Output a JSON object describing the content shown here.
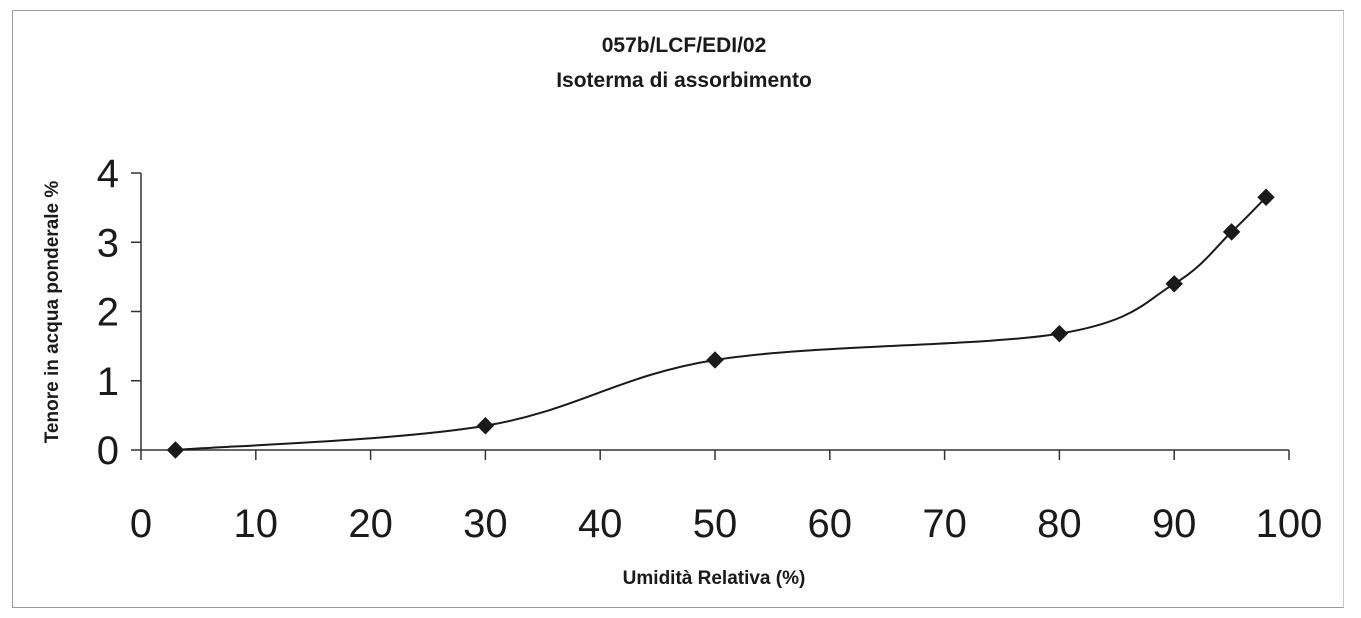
{
  "chart_data": {
    "type": "scatter",
    "title": "057b/LCF/EDI/02",
    "subtitle": "Isoterma di assorbimento",
    "xlabel": "Umidità Relativa (%)",
    "ylabel": "Tenore in acqua ponderale %",
    "xlim": [
      0,
      100
    ],
    "ylim": [
      0,
      4
    ],
    "xticks": [
      "0",
      "10",
      "20",
      "30",
      "40",
      "50",
      "60",
      "70",
      "80",
      "90",
      "100"
    ],
    "yticks": [
      "0",
      "1",
      "2",
      "3",
      "4"
    ],
    "grid": false,
    "legend": "none",
    "line": "smoothed",
    "marker": "diamond",
    "series": [
      {
        "x": [
          3,
          30,
          50,
          80,
          90,
          95,
          98
        ],
        "y": [
          0.0,
          0.35,
          1.3,
          1.68,
          2.4,
          3.15,
          3.65
        ]
      }
    ],
    "colors": {
      "ink": "#1a1a1a",
      "axis": "#333333"
    }
  }
}
